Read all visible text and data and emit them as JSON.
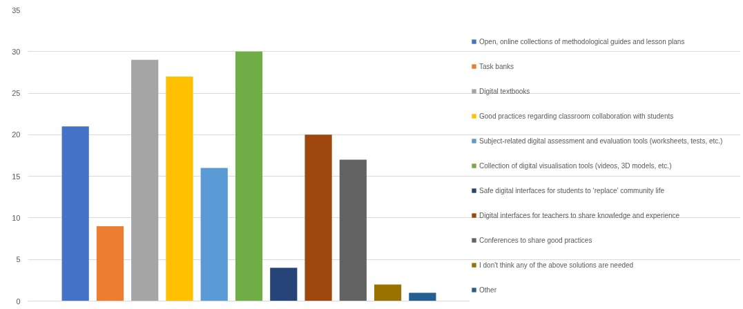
{
  "chart_data": {
    "type": "bar",
    "categories": [
      null
    ],
    "series": [
      {
        "name": "Open, online collections of methodological guides and lesson plans",
        "color": "#4472c4",
        "values": [
          21
        ]
      },
      {
        "name": "Task banks",
        "color": "#ed7d31",
        "values": [
          9
        ]
      },
      {
        "name": "Digital textbooks",
        "color": "#a5a5a5",
        "values": [
          29
        ]
      },
      {
        "name": "Good practices regarding classroom collaboration with students",
        "color": "#ffc000",
        "values": [
          27
        ]
      },
      {
        "name": "Subject-related digital assessment and evaluation tools (worksheets, tests, etc.)",
        "color": "#5b9bd5",
        "values": [
          16
        ]
      },
      {
        "name": "Collection of digital visualisation tools (videos, 3D models, etc.)",
        "color": "#70ad47",
        "values": [
          30
        ]
      },
      {
        "name": "Safe digital interfaces for students to ‘replace’ community life",
        "color": "#264478",
        "values": [
          4
        ]
      },
      {
        "name": "Digital interfaces for teachers to share knowledge and experience",
        "color": "#9e480e",
        "values": [
          20
        ]
      },
      {
        "name": "Conferences to share good practices",
        "color": "#636363",
        "values": [
          17
        ]
      },
      {
        "name": "I don't think any of the above solutions are needed",
        "color": "#997300",
        "values": [
          2
        ]
      },
      {
        "name": "Other",
        "color": "#255e91",
        "values": [
          1
        ]
      }
    ],
    "ylim": [
      0,
      35
    ],
    "yticks": [
      0,
      5,
      10,
      15,
      20,
      25,
      30,
      35
    ],
    "grid": "y",
    "legend": "right"
  }
}
